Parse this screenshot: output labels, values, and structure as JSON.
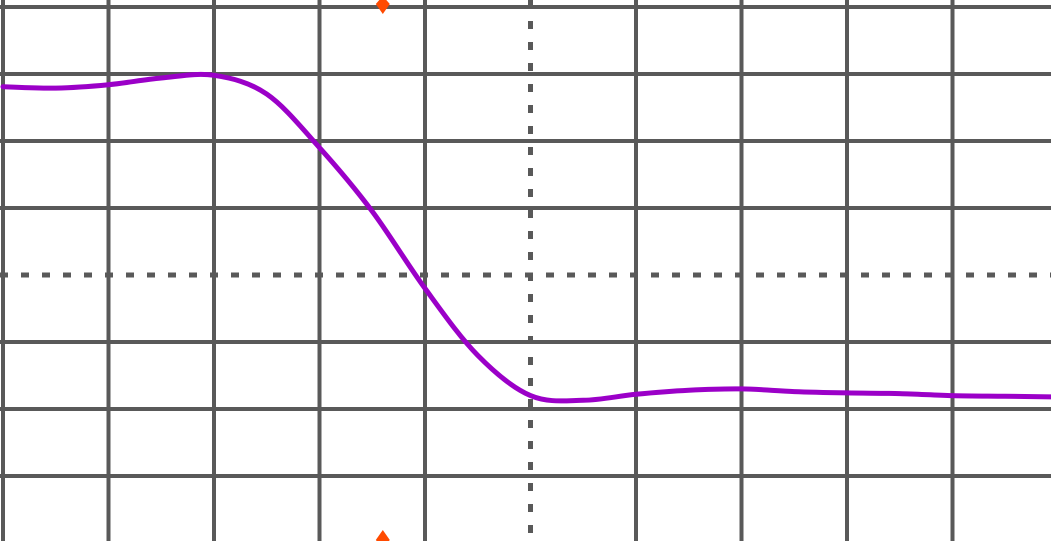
{
  "colors": {
    "background": "#ffffff",
    "grid": "#595959",
    "trace": "#9b00c8",
    "trigger_marker": "#ff4a00"
  },
  "chart_data": {
    "type": "line",
    "title": "",
    "xlabel": "",
    "ylabel": "",
    "grid": true,
    "center_axes_dotted": true,
    "xlim": [
      -5,
      5
    ],
    "ylim": [
      -4,
      4
    ],
    "x_divisions": 10,
    "y_divisions": 8,
    "trigger_x": -1.4,
    "series": [
      {
        "points": [
          [
            -5.0,
            2.81
          ],
          [
            -4.5,
            2.79
          ],
          [
            -4.0,
            2.84
          ],
          [
            -3.5,
            2.94
          ],
          [
            -3.0,
            2.98
          ],
          [
            -2.5,
            2.7
          ],
          [
            -2.0,
            1.9
          ],
          [
            -1.5,
            0.95
          ],
          [
            -1.0,
            -0.2
          ],
          [
            -0.5,
            -1.2
          ],
          [
            0.0,
            -1.8
          ],
          [
            0.5,
            -1.87
          ],
          [
            1.0,
            -1.78
          ],
          [
            1.5,
            -1.72
          ],
          [
            2.0,
            -1.7
          ],
          [
            2.5,
            -1.74
          ],
          [
            3.0,
            -1.76
          ],
          [
            3.5,
            -1.77
          ],
          [
            4.0,
            -1.8
          ],
          [
            4.5,
            -1.81
          ],
          [
            5.0,
            -1.82
          ]
        ]
      }
    ]
  }
}
